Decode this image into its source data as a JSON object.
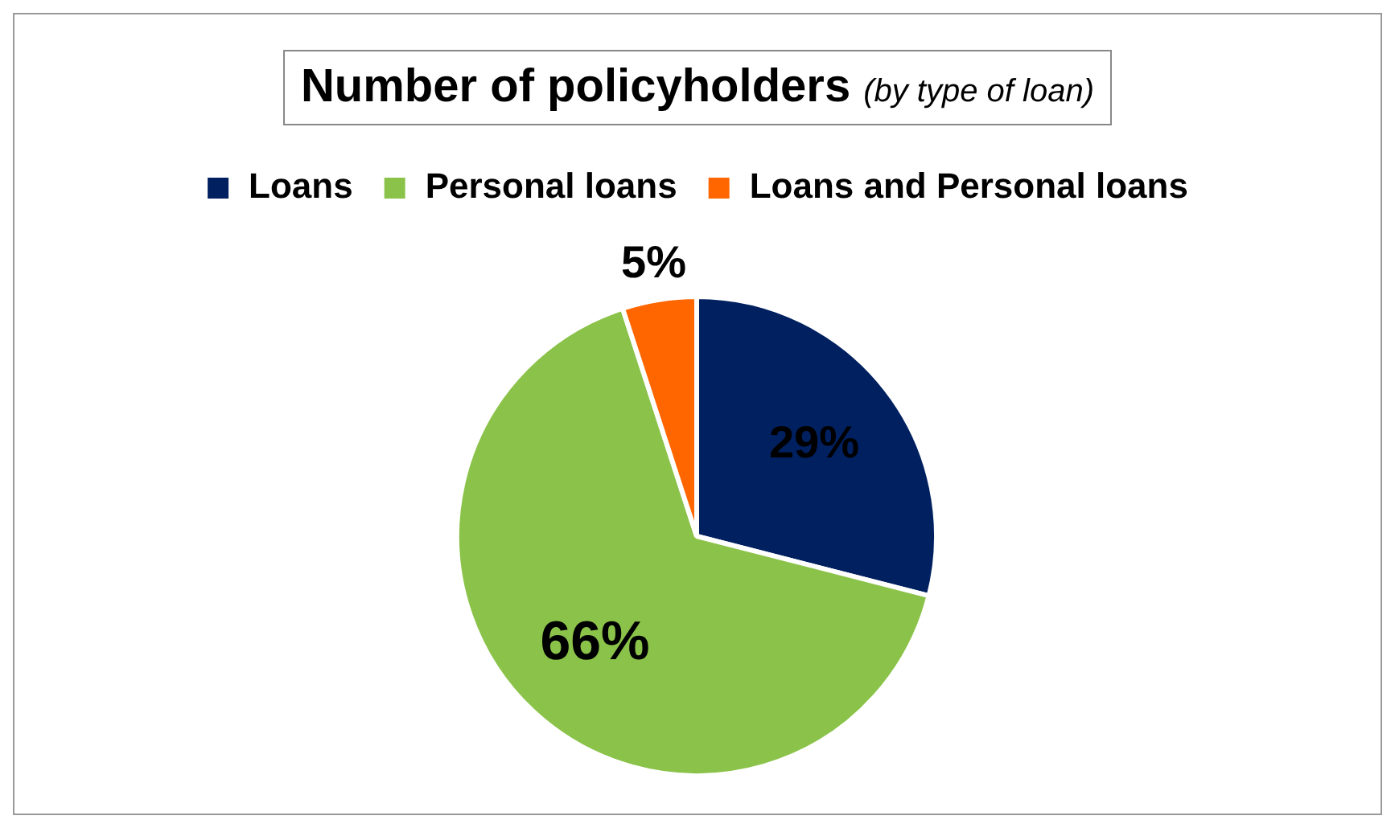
{
  "chart_data": {
    "type": "pie",
    "title": "Number of policyholders",
    "subtitle": "(by type of loan)",
    "categories": [
      "Loans",
      "Personal loans",
      "Loans and Personal loans"
    ],
    "values": [
      29,
      66,
      5
    ],
    "colors": [
      "#002060",
      "#8bc34a",
      "#ff6600"
    ],
    "value_labels": [
      "29%",
      "66%",
      "5%"
    ],
    "legend": "top"
  }
}
